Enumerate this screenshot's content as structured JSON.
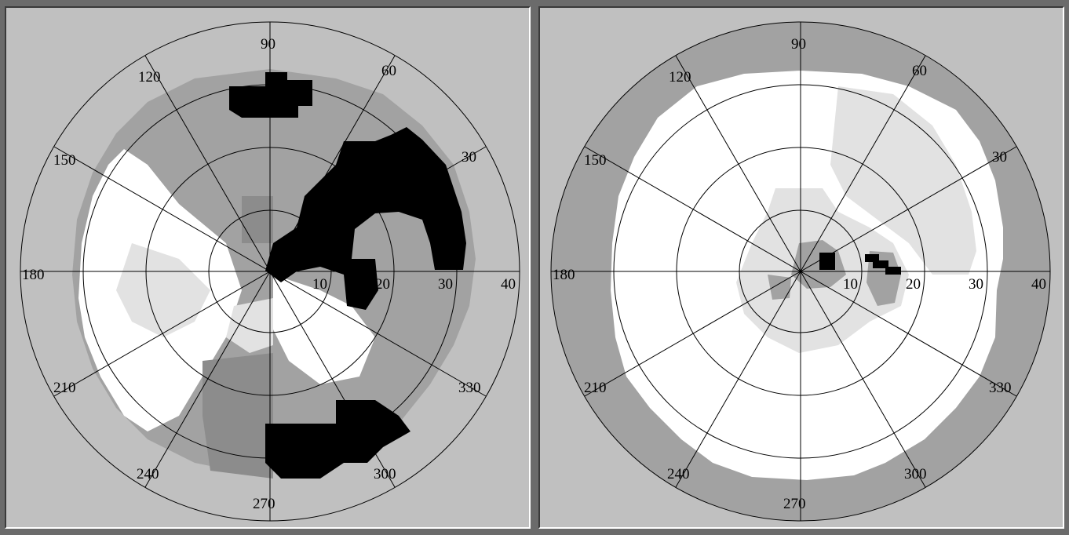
{
  "colors": {
    "background": "#c0c0c0",
    "white": "#ffffff",
    "light_gray": "#e2e2e2",
    "mid_gray": "#a2a2a2",
    "dark_gray": "#8c8c8c",
    "black": "#000000"
  },
  "fields": [
    {
      "name": "left-field",
      "angle_labels": [
        "90",
        "60",
        "30",
        "180",
        "150",
        "120",
        "210",
        "240",
        "270",
        "300",
        "330"
      ],
      "radius_labels": [
        "10",
        "20",
        "30",
        "40"
      ]
    },
    {
      "name": "right-field",
      "angle_labels": [
        "90",
        "60",
        "30",
        "180",
        "150",
        "120",
        "210",
        "240",
        "270",
        "300",
        "330"
      ],
      "radius_labels": [
        "10",
        "20",
        "30",
        "40"
      ]
    }
  ]
}
